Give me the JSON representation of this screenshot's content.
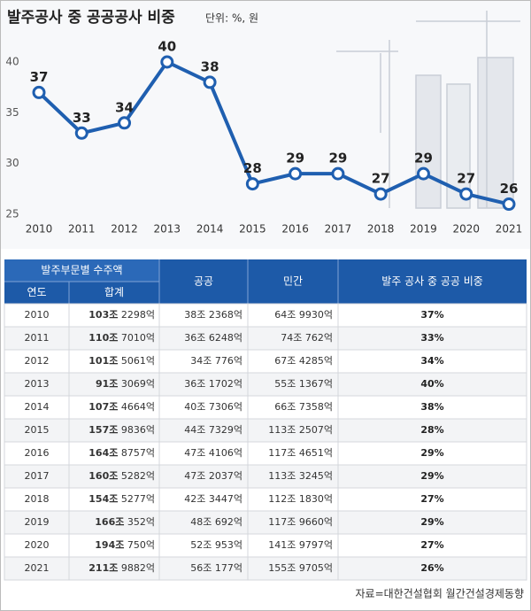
{
  "chart_data": {
    "type": "line",
    "title": "발주공사 중 공공공사 비중",
    "subtitle": "단위: %, 원",
    "x": [
      2010,
      2011,
      2012,
      2013,
      2014,
      2015,
      2016,
      2017,
      2018,
      2019,
      2020,
      2021
    ],
    "xlim": [
      2010,
      2021
    ],
    "values": [
      37,
      33,
      34,
      40,
      38,
      28,
      29,
      29,
      27,
      29,
      27,
      26
    ],
    "color": "#1f5fb0",
    "ylim": [
      25,
      40
    ],
    "yticks": [
      25,
      30,
      35,
      40
    ],
    "grid": false
  },
  "table": {
    "group_header": "발주부문별 수주액",
    "header": [
      "연도",
      "합계",
      "공공",
      "민간",
      "발주 공사 중 공공 비중"
    ],
    "rows": [
      [
        "2010",
        {
          "major": "103조",
          "minor": "2298억"
        },
        "38조 2368억",
        "64조 9930억",
        "37%"
      ],
      [
        "2011",
        {
          "major": "110조",
          "minor": "7010억"
        },
        "36조 6248억",
        "74조 762억",
        "33%"
      ],
      [
        "2012",
        {
          "major": "101조",
          "minor": "5061억"
        },
        "34조 776억",
        "67조 4285억",
        "34%"
      ],
      [
        "2013",
        {
          "major": "91조",
          "minor": "3069억"
        },
        "36조 1702억",
        "55조 1367억",
        "40%"
      ],
      [
        "2014",
        {
          "major": "107조",
          "minor": "4664억"
        },
        "40조 7306억",
        "66조 7358억",
        "38%"
      ],
      [
        "2015",
        {
          "major": "157조",
          "minor": "9836억"
        },
        "44조 7329억",
        "113조 2507억",
        "28%"
      ],
      [
        "2016",
        {
          "major": "164조",
          "minor": "8757억"
        },
        "47조 4106억",
        "117조 4651억",
        "29%"
      ],
      [
        "2017",
        {
          "major": "160조",
          "minor": "5282억"
        },
        "47조 2037억",
        "113조 3245억",
        "29%"
      ],
      [
        "2018",
        {
          "major": "154조",
          "minor": "5277억"
        },
        "42조 3447억",
        "112조 1830억",
        "27%"
      ],
      [
        "2019",
        {
          "major": "166조",
          "minor": "352억"
        },
        "48조 692억",
        "117조 9660억",
        "29%"
      ],
      [
        "2020",
        {
          "major": "194조",
          "minor": "750억"
        },
        "52조 953억",
        "141조 9797억",
        "27%"
      ],
      [
        "2021",
        {
          "major": "211조",
          "minor": "9882억"
        },
        "56조 177억",
        "155조 9705억",
        "26%"
      ]
    ]
  },
  "source": "자료=대한건설협회 월간건설경제동향"
}
